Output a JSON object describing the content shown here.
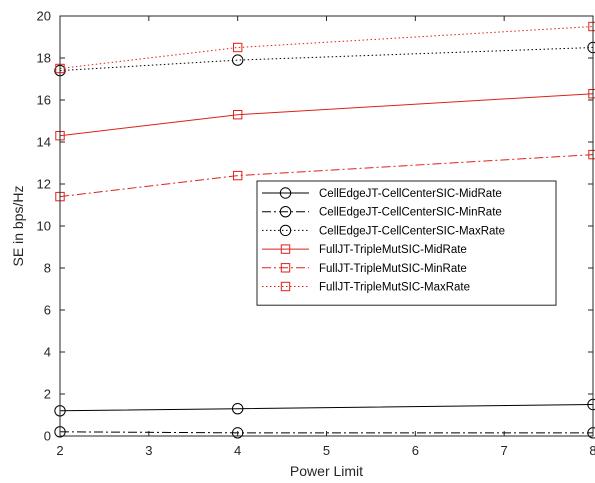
{
  "chart_data": {
    "type": "line",
    "title": "",
    "xlabel": "Power Limit",
    "ylabel": "SE in bps/Hz",
    "xlim": [
      2,
      8
    ],
    "ylim": [
      0,
      20
    ],
    "xticks": [
      2,
      3,
      4,
      5,
      6,
      7,
      8
    ],
    "yticks": [
      0,
      2,
      4,
      6,
      8,
      10,
      12,
      14,
      16,
      18,
      20
    ],
    "x": [
      2,
      4,
      8
    ],
    "grid": false,
    "legend_position": "middle-right",
    "series": [
      {
        "name": "CellEdgeJT-CellCenterSIC-MidRate",
        "values": [
          1.2,
          1.3,
          1.5
        ],
        "color": "#000000",
        "dash": "solid",
        "marker": "circle"
      },
      {
        "name": "CellEdgeJT-CellCenterSIC-MinRate",
        "values": [
          0.2,
          0.15,
          0.15
        ],
        "color": "#000000",
        "dash": "dashdot",
        "marker": "circle"
      },
      {
        "name": "CellEdgeJT-CellCenterSIC-MaxRate",
        "values": [
          17.4,
          17.9,
          18.5
        ],
        "color": "#000000",
        "dash": "dotted",
        "marker": "circle"
      },
      {
        "name": "FullJT-TripleMutSIC-MidRate",
        "values": [
          14.3,
          15.3,
          16.3
        ],
        "color": "#e0201b",
        "dash": "solid",
        "marker": "square"
      },
      {
        "name": "FullJT-TripleMutSIC-MinRate",
        "values": [
          11.4,
          12.4,
          13.4
        ],
        "color": "#e0201b",
        "dash": "dashdot",
        "marker": "square"
      },
      {
        "name": "FullJT-TripleMutSIC-MaxRate",
        "values": [
          17.5,
          18.5,
          19.5
        ],
        "color": "#e0201b",
        "dash": "dotted",
        "marker": "square"
      }
    ]
  }
}
